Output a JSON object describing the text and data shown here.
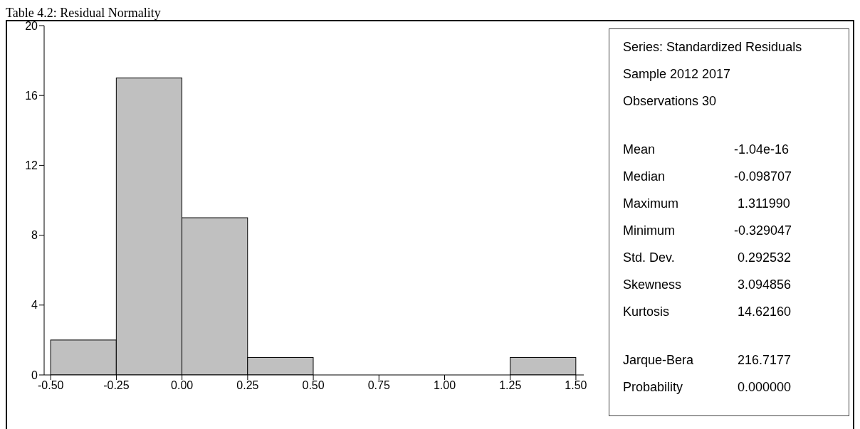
{
  "chart_data": {
    "type": "histogram",
    "title": "Table 4.2: Residual Normality",
    "bins": [
      -0.5,
      -0.25,
      0,
      0.25,
      0.5,
      0.75,
      1.0,
      1.25,
      1.5
    ],
    "values": [
      2,
      17,
      9,
      1,
      0,
      0,
      0,
      1
    ],
    "color": "#c0c0c0",
    "xlim": [
      -0.525,
      1.53
    ],
    "xticks": [
      {
        "value": -0.5,
        "label": "-0.50"
      },
      {
        "value": -0.25,
        "label": "-0.25"
      },
      {
        "value": 0,
        "label": "0.00"
      },
      {
        "value": 0.25,
        "label": "0.25"
      },
      {
        "value": 0.5,
        "label": "0.50"
      },
      {
        "value": 0.75,
        "label": "0.75"
      },
      {
        "value": 1,
        "label": "1.00"
      },
      {
        "value": 1.25,
        "label": "1.25"
      },
      {
        "value": 1.5,
        "label": "1.50"
      }
    ],
    "ylim": [
      0,
      20
    ],
    "yticks": [
      0,
      4,
      8,
      12,
      16,
      20
    ],
    "grid": false,
    "annotations": [
      "Series: Standardized Residuals",
      "Sample 2012 2017",
      "Observations 30",
      "Mean\t-1.04e-16",
      "Median\t-0.098707",
      "Maximum\t 1.311990",
      "Minimum\t-0.329047",
      "Std. Dev.\t 0.292532",
      "Skewness\t 3.094856",
      "Kurtosis\t 14.62160",
      "Jarque-Bera\t 216.7177",
      "Probability\t 0.000000"
    ]
  }
}
